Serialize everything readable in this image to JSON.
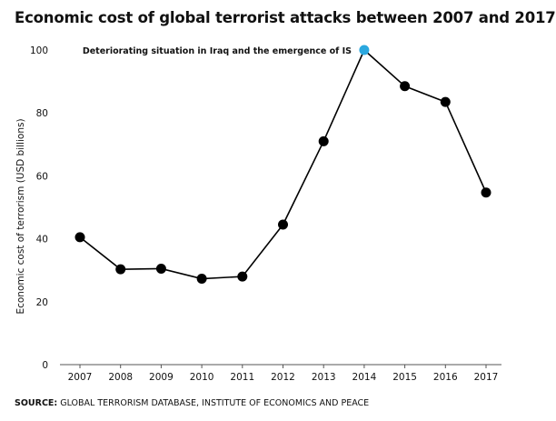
{
  "chart_data": {
    "type": "line",
    "title": "Economic cost of global terrorist attacks  between 2007 and 2017",
    "xlabel": "",
    "ylabel": "Economic cost of terrorism (USD billions)",
    "categories": [
      "2007",
      "2008",
      "2009",
      "2010",
      "2011",
      "2012",
      "2013",
      "2014",
      "2015",
      "2016",
      "2017"
    ],
    "values": [
      40.5,
      30.3,
      30.5,
      27.3,
      28.0,
      44.5,
      71.0,
      100.0,
      88.5,
      83.5,
      54.7
    ],
    "ylim": [
      0,
      100
    ],
    "yticks": [
      "0",
      "20",
      "40",
      "60",
      "80",
      "100"
    ],
    "grid": false,
    "highlight_index": 7,
    "annotation": "Deteriorating situation in Iraq and the emergence of IS",
    "colors": {
      "line": "#000000",
      "marker": "#000000",
      "highlight": "#2ba8df",
      "axis": "#555555"
    }
  },
  "source": {
    "label": "SOURCE:",
    "text": " GLOBAL TERRORISM DATABASE, INSTITUTE OF ECONOMICS AND PEACE"
  }
}
